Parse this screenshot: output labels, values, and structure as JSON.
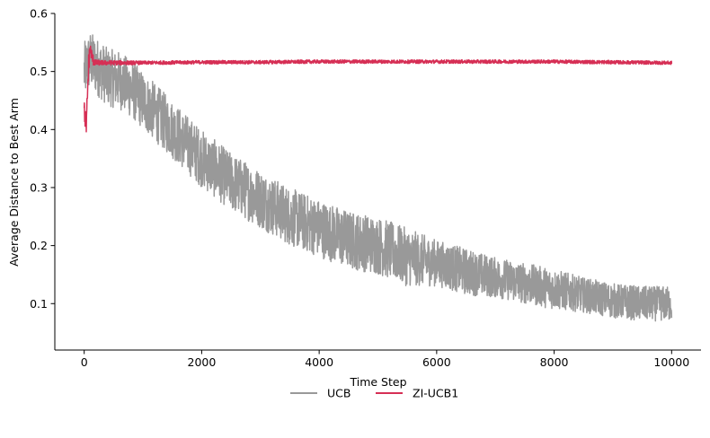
{
  "chart_data": {
    "type": "line",
    "title": "",
    "xlabel": "Time Step",
    "ylabel": "Average Distance to Best Arm",
    "xlim": [
      -500,
      10500
    ],
    "ylim": [
      0.02,
      0.6
    ],
    "xticks": [
      0,
      2000,
      4000,
      6000,
      8000,
      10000
    ],
    "xtick_labels": [
      "0",
      "2000",
      "4000",
      "6000",
      "8000",
      "10000"
    ],
    "yticks": [
      0.1,
      0.2,
      0.3,
      0.4,
      0.5,
      0.6
    ],
    "ytick_labels": [
      "0.1",
      "0.2",
      "0.3",
      "0.4",
      "0.5",
      "0.6"
    ],
    "grid": false,
    "legend_position": "bottom-center",
    "series": [
      {
        "name": "UCB",
        "color": "#999999",
        "x": [
          0,
          100,
          200,
          300,
          400,
          600,
          800,
          1000,
          1200,
          1500,
          2000,
          2500,
          3000,
          3500,
          4000,
          4500,
          5000,
          5500,
          6000,
          6500,
          7000,
          7500,
          8000,
          8500,
          9000,
          9500,
          10000
        ],
        "y": [
          0.5,
          0.52,
          0.51,
          0.5,
          0.49,
          0.485,
          0.47,
          0.45,
          0.43,
          0.4,
          0.35,
          0.31,
          0.28,
          0.25,
          0.23,
          0.21,
          0.2,
          0.18,
          0.17,
          0.155,
          0.145,
          0.135,
          0.125,
          0.115,
          0.105,
          0.1,
          0.1
        ],
        "spread": [
          0.05,
          0.05,
          0.05,
          0.05,
          0.05,
          0.05,
          0.05,
          0.05,
          0.05,
          0.05,
          0.05,
          0.05,
          0.05,
          0.05,
          0.05,
          0.05,
          0.05,
          0.05,
          0.04,
          0.04,
          0.035,
          0.035,
          0.035,
          0.03,
          0.03,
          0.03,
          0.03
        ]
      },
      {
        "name": "ZI-UCB1",
        "color": "#d62f55",
        "x": [
          0,
          20,
          40,
          60,
          80,
          100,
          150,
          200,
          300,
          500,
          1000,
          2000,
          3000,
          4000,
          5000,
          6000,
          7000,
          8000,
          9000,
          10000
        ],
        "y": [
          0.43,
          0.42,
          0.41,
          0.47,
          0.52,
          0.54,
          0.52,
          0.515,
          0.515,
          0.515,
          0.515,
          0.516,
          0.516,
          0.517,
          0.517,
          0.517,
          0.517,
          0.517,
          0.516,
          0.515
        ],
        "spread": [
          0.02,
          0.02,
          0.02,
          0.03,
          0.02,
          0.01,
          0.01,
          0.005,
          0.004,
          0.004,
          0.003,
          0.003,
          0.003,
          0.003,
          0.003,
          0.003,
          0.003,
          0.003,
          0.003,
          0.003
        ]
      }
    ]
  }
}
